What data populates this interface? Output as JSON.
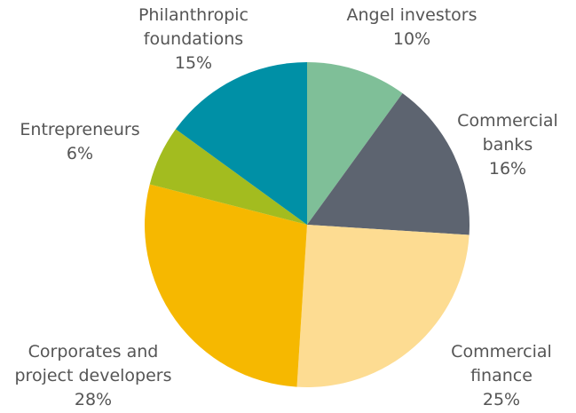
{
  "chart_data": {
    "type": "pie",
    "categories": [
      "Angel investors",
      "Commercial banks",
      "Commercial finance",
      "Corporates and project developers",
      "Entrepreneurs",
      "Philanthropic foundations"
    ],
    "values": [
      10,
      16,
      25,
      28,
      6,
      15
    ],
    "value_labels": [
      "10%",
      "16%",
      "25%",
      "28%",
      "6%",
      "15%"
    ],
    "colors": [
      "#7fbf98",
      "#5d6470",
      "#fddc92",
      "#f6b800",
      "#a3bc1f",
      "#0090a6"
    ]
  }
}
